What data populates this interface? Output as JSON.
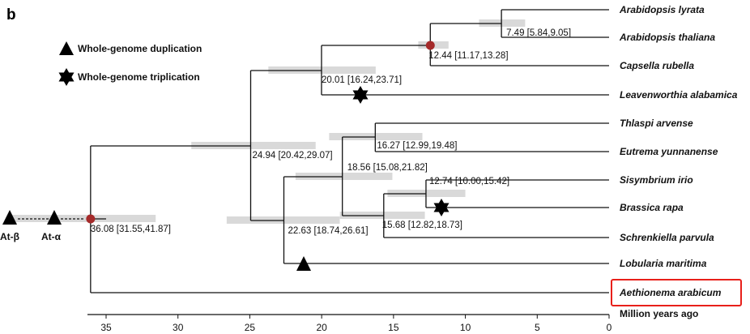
{
  "panel_label": "b",
  "legend": [
    {
      "symbol": "triangle",
      "label": "Whole-genome duplication"
    },
    {
      "symbol": "six-point-star",
      "label": "Whole-genome triplication"
    }
  ],
  "events_root": [
    {
      "symbol": "triangle",
      "label": "At-β"
    },
    {
      "symbol": "triangle",
      "label": "At-α"
    }
  ],
  "species": [
    "Arabidopsis lyrata",
    "Arabidopsis thaliana",
    "Capsella rubella",
    "Leavenworthia alabamica",
    "Thlaspi arvense",
    "Eutrema yunnanense",
    "Sisymbrium irio",
    "Brassica rapa",
    "Schrenkiella parvula",
    "Lobularia maritima",
    "Aethionema arabicum"
  ],
  "highlighted_species": "Aethionema arabicum",
  "nodes": [
    {
      "id": "root",
      "age": 36.08,
      "ci": [
        31.55,
        41.87
      ],
      "label": "36.08 [31.55,41.87]",
      "marked": true
    },
    {
      "id": "n2494",
      "age": 24.94,
      "ci": [
        20.42,
        29.07
      ],
      "label": "24.94 [20.42,29.07]"
    },
    {
      "id": "n2001",
      "age": 20.01,
      "ci": [
        16.24,
        23.71
      ],
      "label": "20.01 [16.24,23.71]"
    },
    {
      "id": "n1244",
      "age": 12.44,
      "ci": [
        11.17,
        13.28
      ],
      "label": "12.44 [11.17,13.28]",
      "marked": true
    },
    {
      "id": "n749",
      "age": 7.49,
      "ci": [
        5.84,
        9.05
      ],
      "label": "7.49 [5.84,9.05]"
    },
    {
      "id": "n2263",
      "age": 22.63,
      "ci": [
        18.74,
        26.61
      ],
      "label": "22.63 [18.74,26.61]"
    },
    {
      "id": "n1856",
      "age": 18.56,
      "ci": [
        15.08,
        21.82
      ],
      "label": "18.56 [15.08,21.82]"
    },
    {
      "id": "n1627",
      "age": 16.27,
      "ci": [
        12.99,
        19.48
      ],
      "label": "16.27 [12.99,19.48]"
    },
    {
      "id": "n1568",
      "age": 15.68,
      "ci": [
        12.82,
        18.73
      ],
      "label": "15.68 [12.82,18.73]"
    },
    {
      "id": "n1274",
      "age": 12.74,
      "ci": [
        10.0,
        15.42
      ],
      "label": "12.74 [10.00,15.42]"
    }
  ],
  "axis": {
    "title": "Million years ago",
    "ticks": [
      35,
      30,
      25,
      20,
      15,
      10,
      5,
      0
    ]
  },
  "colors": {
    "marked_node": "#a52a2a",
    "ci_bar": "#d9d9d9",
    "highlight_box": "#e8201a"
  }
}
